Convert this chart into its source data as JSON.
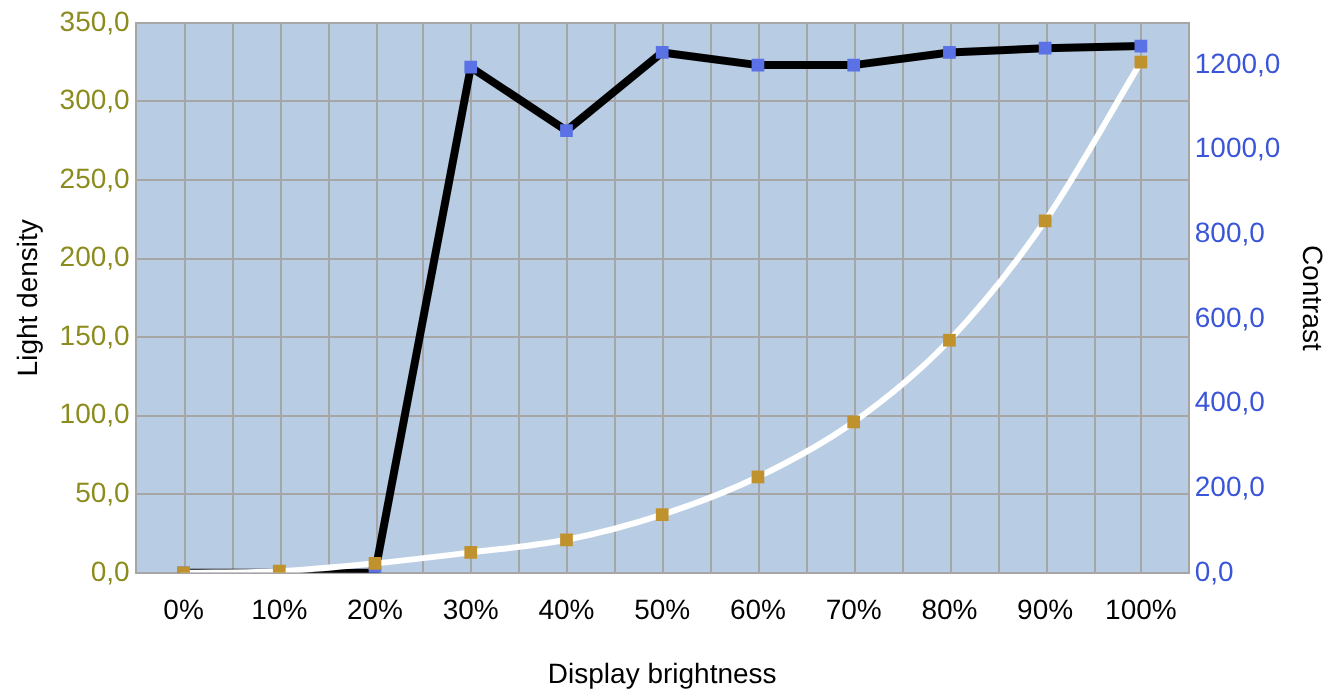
{
  "chart_data": {
    "type": "line",
    "xlabel": "Display brightness",
    "ylabel": "Light density",
    "y2label": "Contrast",
    "categories": [
      "0%",
      "10%",
      "20%",
      "30%",
      "40%",
      "50%",
      "60%",
      "70%",
      "80%",
      "90%",
      "100%"
    ],
    "series": [
      {
        "color": "#c0922e",
        "values": [
          0,
          1,
          6,
          13,
          21,
          37,
          61,
          96,
          148,
          224,
          325
        ]
      },
      {
        "color": "#5a72e6",
        "axis": "y2",
        "values": [
          0,
          0,
          0,
          1195,
          1045,
          1230,
          1200,
          1200,
          1230,
          1240,
          1245
        ]
      }
    ],
    "ylim": [
      0,
      350
    ],
    "yticks": [
      {
        "value": 0,
        "label": "0,0"
      },
      {
        "value": 50,
        "label": "50,0"
      },
      {
        "value": 100,
        "label": "100,0"
      },
      {
        "value": 150,
        "label": "150,0"
      },
      {
        "value": 200,
        "label": "200,0"
      },
      {
        "value": 250,
        "label": "250,0"
      },
      {
        "value": 300,
        "label": "300,0"
      },
      {
        "value": 350,
        "label": "350,0"
      }
    ],
    "y2lim": [
      0,
      1300
    ],
    "y2ticks": [
      {
        "value": 0,
        "label": "0,0"
      },
      {
        "value": 200,
        "label": "200,0"
      },
      {
        "value": 400,
        "label": "400,0"
      },
      {
        "value": 600,
        "label": "600,0"
      },
      {
        "value": 800,
        "label": "800,0"
      },
      {
        "value": 1000,
        "label": "1000,0"
      },
      {
        "value": 1200,
        "label": "1200,0"
      }
    ],
    "grid": true,
    "legend": false,
    "marker": "square",
    "line_style": "solid"
  }
}
